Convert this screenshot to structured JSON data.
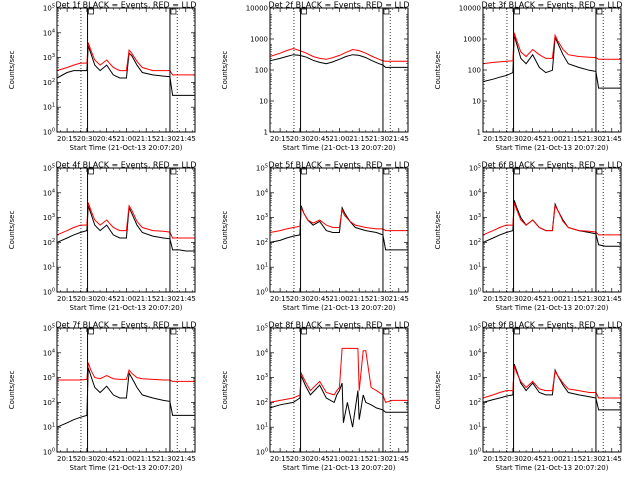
{
  "colors": {
    "events": "#000000",
    "lld": "#ff0000",
    "axes": "#000000",
    "background": "#ffffff"
  },
  "common": {
    "ylabel": "Counts/sec",
    "xlabel": "Start Time (21-Oct-13 20:07:20)",
    "x_ticks": [
      "20:15",
      "20:30",
      "20:45",
      "21:00",
      "21:15",
      "21:30",
      "21:45"
    ],
    "x_tick_minutes": [
      15,
      30,
      45,
      60,
      75,
      90,
      105
    ],
    "x_range_minutes": [
      7.33,
      112
    ],
    "dotted_marker_minutes": [
      25.5,
      98.5
    ],
    "solid_marker_minutes": [
      30.5,
      93.0
    ]
  },
  "chart_data": [
    {
      "type": "line",
      "title": "Det 1f BLACK = Events, RED = LLD",
      "y_scale": "log",
      "ylim": [
        1,
        100000
      ],
      "y_ticks": [
        "10^0",
        "10^1",
        "10^2",
        "10^3",
        "10^4",
        "10^5"
      ],
      "x": [
        7.3,
        15,
        20,
        25,
        30,
        31,
        33,
        36,
        40,
        45,
        50,
        55,
        60,
        62,
        64,
        68,
        72,
        80,
        88,
        93,
        95,
        100,
        105,
        112
      ],
      "series": [
        {
          "name": "Events",
          "values": [
            150,
            250,
            300,
            300,
            300,
            3000,
            1500,
            500,
            300,
            500,
            200,
            150,
            150,
            1500,
            1200,
            500,
            250,
            200,
            180,
            170,
            30,
            30,
            30,
            30
          ]
        },
        {
          "name": "LLD",
          "values": [
            300,
            400,
            500,
            600,
            600,
            4000,
            2000,
            800,
            500,
            800,
            400,
            300,
            300,
            2000,
            1500,
            700,
            400,
            300,
            300,
            300,
            200,
            200,
            200,
            200
          ]
        }
      ]
    },
    {
      "type": "line",
      "title": "Det 2f BLACK = Events, RED = LLD",
      "y_scale": "log",
      "ylim": [
        1,
        15000
      ],
      "y_ticks": [
        "1",
        "10",
        "100",
        "1000",
        "10000"
      ],
      "x": [
        7.3,
        15,
        20,
        25,
        30,
        35,
        40,
        45,
        50,
        55,
        60,
        65,
        70,
        75,
        80,
        85,
        90,
        93,
        95,
        100,
        105,
        112
      ],
      "series": [
        {
          "name": "Events",
          "values": [
            250,
            300,
            350,
            400,
            380,
            330,
            260,
            220,
            200,
            230,
            280,
            350,
            400,
            380,
            320,
            250,
            200,
            180,
            150,
            150,
            150,
            150
          ]
        },
        {
          "name": "LLD",
          "values": [
            350,
            450,
            550,
            650,
            550,
            450,
            350,
            300,
            280,
            320,
            380,
            480,
            600,
            550,
            450,
            350,
            280,
            250,
            240,
            240,
            240,
            240
          ]
        }
      ]
    },
    {
      "type": "line",
      "title": "Det 3f BLACK = Events, RED = LLD",
      "y_scale": "log",
      "ylim": [
        1,
        15000
      ],
      "y_ticks": [
        "1",
        "10",
        "100",
        "1000",
        "10000"
      ],
      "x": [
        7.3,
        15,
        20,
        25,
        30,
        31,
        33,
        36,
        40,
        45,
        50,
        55,
        60,
        62,
        64,
        68,
        72,
        80,
        88,
        93,
        95,
        100,
        105,
        112
      ],
      "series": [
        {
          "name": "Events",
          "values": [
            50,
            60,
            70,
            80,
            100,
            1800,
            900,
            300,
            200,
            400,
            150,
            100,
            120,
            1500,
            1000,
            400,
            200,
            150,
            120,
            110,
            30,
            30,
            30,
            30
          ]
        },
        {
          "name": "LLD",
          "values": [
            200,
            220,
            230,
            240,
            250,
            2200,
            1200,
            500,
            350,
            600,
            400,
            300,
            300,
            1800,
            1200,
            600,
            400,
            350,
            330,
            320,
            280,
            280,
            280,
            280
          ]
        }
      ]
    },
    {
      "type": "line",
      "title": "Det 4f BLACK = Events, RED = LLD",
      "y_scale": "log",
      "ylim": [
        1,
        100000
      ],
      "y_ticks": [
        "10^0",
        "10^1",
        "10^2",
        "10^3",
        "10^4",
        "10^5"
      ],
      "x": [
        7.3,
        15,
        20,
        25,
        30,
        31,
        33,
        36,
        40,
        45,
        50,
        55,
        60,
        62,
        64,
        68,
        72,
        80,
        88,
        93,
        95,
        100,
        105,
        112
      ],
      "series": [
        {
          "name": "Events",
          "values": [
            100,
            150,
            200,
            250,
            300,
            3000,
            1500,
            500,
            300,
            500,
            200,
            150,
            150,
            2500,
            1500,
            500,
            250,
            180,
            150,
            140,
            50,
            50,
            45,
            45
          ]
        },
        {
          "name": "LLD",
          "values": [
            200,
            300,
            400,
            500,
            500,
            4000,
            2000,
            800,
            500,
            800,
            400,
            300,
            300,
            3000,
            2000,
            700,
            400,
            300,
            280,
            260,
            150,
            150,
            150,
            150
          ]
        }
      ]
    },
    {
      "type": "line",
      "title": "Det 5f BLACK = Events, RED = LLD",
      "y_scale": "log",
      "ylim": [
        1,
        100000
      ],
      "y_ticks": [
        "10^0",
        "10^1",
        "10^2",
        "10^3",
        "10^4",
        "10^5"
      ],
      "x": [
        7.3,
        15,
        20,
        25,
        30,
        31,
        33,
        36,
        40,
        45,
        50,
        55,
        60,
        62,
        64,
        68,
        72,
        80,
        88,
        93,
        95,
        100,
        105,
        112
      ],
      "series": [
        {
          "name": "Events",
          "values": [
            100,
            120,
            150,
            180,
            200,
            3000,
            1500,
            800,
            500,
            700,
            300,
            250,
            250,
            2500,
            1500,
            700,
            400,
            300,
            250,
            200,
            50,
            50,
            50,
            50
          ]
        },
        {
          "name": "LLD",
          "values": [
            250,
            300,
            350,
            400,
            450,
            2500,
            1500,
            800,
            600,
            800,
            500,
            400,
            400,
            2000,
            1200,
            700,
            500,
            400,
            350,
            350,
            300,
            300,
            300,
            300
          ]
        }
      ]
    },
    {
      "type": "line",
      "title": "Det 6f BLACK = Events, RED = LLD",
      "y_scale": "log",
      "ylim": [
        1,
        100000
      ],
      "y_ticks": [
        "10^0",
        "10^1",
        "10^2",
        "10^3",
        "10^4",
        "10^5"
      ],
      "x": [
        7.3,
        15,
        20,
        25,
        30,
        31,
        33,
        36,
        40,
        45,
        50,
        55,
        60,
        62,
        64,
        68,
        72,
        80,
        88,
        93,
        95,
        100,
        105,
        112
      ],
      "series": [
        {
          "name": "Events",
          "values": [
            100,
            150,
            200,
            250,
            300,
            5000,
            2500,
            1000,
            500,
            800,
            400,
            300,
            300,
            3500,
            2000,
            800,
            400,
            300,
            250,
            220,
            80,
            70,
            70,
            70
          ]
        },
        {
          "name": "LLD",
          "values": [
            200,
            300,
            400,
            500,
            500,
            4000,
            2000,
            800,
            500,
            800,
            400,
            300,
            300,
            3000,
            2000,
            700,
            400,
            300,
            280,
            260,
            200,
            200,
            200,
            200
          ]
        }
      ]
    },
    {
      "type": "line",
      "title": "Det 7f BLACK = Events, RED = LLD",
      "y_scale": "log",
      "ylim": [
        1,
        100000
      ],
      "y_ticks": [
        "10^0",
        "10^1",
        "10^2",
        "10^3",
        "10^4",
        "10^5"
      ],
      "x": [
        7.3,
        15,
        20,
        25,
        30,
        31,
        33,
        36,
        40,
        45,
        50,
        55,
        60,
        62,
        64,
        68,
        72,
        80,
        88,
        93,
        95,
        100,
        105,
        112
      ],
      "series": [
        {
          "name": "Events",
          "values": [
            10,
            15,
            20,
            25,
            30,
            2500,
            1200,
            400,
            250,
            450,
            200,
            150,
            150,
            1500,
            1000,
            400,
            200,
            150,
            120,
            110,
            30,
            30,
            30,
            30
          ]
        },
        {
          "name": "LLD",
          "values": [
            800,
            800,
            800,
            800,
            850,
            4000,
            2000,
            1000,
            900,
            1200,
            900,
            850,
            850,
            2000,
            1500,
            1000,
            900,
            850,
            800,
            800,
            700,
            700,
            700,
            700
          ]
        }
      ]
    },
    {
      "type": "line",
      "title": "Det 8f BLACK = Events, RED = LLD",
      "y_scale": "log",
      "ylim": [
        1,
        100000
      ],
      "y_ticks": [
        "10^0",
        "10^1",
        "10^2",
        "10^3",
        "10^4",
        "10^5"
      ],
      "x": [
        7.3,
        15,
        25,
        30,
        31,
        34,
        38,
        45,
        50,
        56,
        58,
        60,
        62,
        63,
        66,
        70,
        74,
        75,
        78,
        80,
        84,
        88,
        93,
        95,
        100,
        105,
        112
      ],
      "series": [
        {
          "name": "Events",
          "values": [
            60,
            80,
            100,
            150,
            1200,
            500,
            200,
            500,
            150,
            100,
            200,
            300,
            600,
            15,
            100,
            10,
            300,
            20,
            200,
            100,
            80,
            60,
            50,
            40,
            40,
            40,
            40
          ]
        },
        {
          "name": "LLD",
          "values": [
            100,
            120,
            150,
            200,
            1500,
            700,
            300,
            700,
            250,
            200,
            300,
            400,
            15000,
            15000,
            15000,
            15000,
            15000,
            300,
            12000,
            12000,
            400,
            300,
            200,
            100,
            120,
            120,
            120
          ]
        }
      ]
    },
    {
      "type": "line",
      "title": "Det 9f BLACK = Events, RED = LLD",
      "y_scale": "log",
      "ylim": [
        1,
        100000
      ],
      "y_ticks": [
        "10^0",
        "10^1",
        "10^2",
        "10^3",
        "10^4",
        "10^5"
      ],
      "x": [
        7.3,
        15,
        20,
        25,
        30,
        31,
        33,
        36,
        40,
        45,
        50,
        55,
        60,
        62,
        64,
        68,
        72,
        80,
        88,
        93,
        95,
        100,
        105,
        112
      ],
      "series": [
        {
          "name": "Events",
          "values": [
            100,
            130,
            150,
            180,
            200,
            3500,
            1800,
            600,
            300,
            600,
            250,
            200,
            200,
            2000,
            1200,
            500,
            250,
            200,
            170,
            150,
            50,
            50,
            50,
            50
          ]
        },
        {
          "name": "LLD",
          "values": [
            150,
            200,
            250,
            300,
            300,
            3000,
            1500,
            700,
            400,
            700,
            350,
            300,
            300,
            1800,
            1200,
            600,
            350,
            300,
            250,
            250,
            150,
            150,
            150,
            150
          ]
        }
      ]
    }
  ]
}
